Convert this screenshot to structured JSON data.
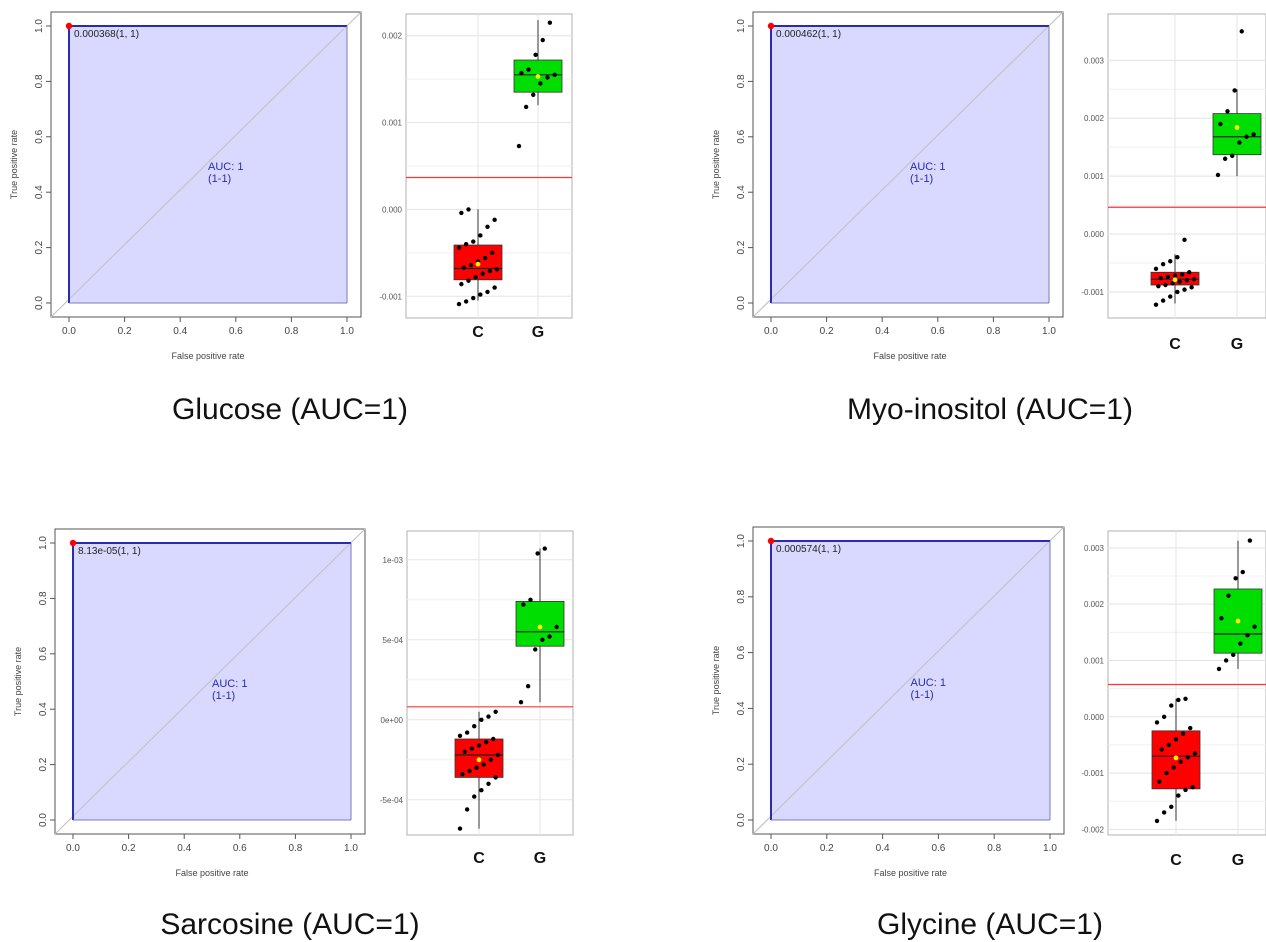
{
  "chart_data": [
    {
      "type": "roc_with_boxplot",
      "caption": "Glucose (AUC=1)",
      "roc": {
        "type": "line",
        "xlabel": "False positive rate",
        "ylabel": "True positive rate",
        "xlim": [
          0,
          1
        ],
        "ylim": [
          0,
          1
        ],
        "xticks": [
          "0.0",
          "0.2",
          "0.4",
          "0.6",
          "0.8",
          "1.0"
        ],
        "yticks": [
          "0.0",
          "0.2",
          "0.4",
          "0.6",
          "0.8",
          "1.0"
        ],
        "curve": [
          [
            0,
            0
          ],
          [
            0,
            1
          ],
          [
            1,
            1
          ]
        ],
        "auc_text": "AUC: 1",
        "ci_text": "(1-1)",
        "threshold_label": "0.000368(1, 1)",
        "threshold_point": [
          0,
          1
        ]
      },
      "boxplot": {
        "type": "box",
        "categories": [
          "C",
          "G"
        ],
        "ylim": [
          -0.00125,
          0.00225
        ],
        "yticks": [
          {
            "v": -0.001,
            "label": "-0.001"
          },
          {
            "v": 0,
            "label": "0.000"
          },
          {
            "v": 0.001,
            "label": "0.001"
          },
          {
            "v": 0.002,
            "label": "0.002"
          }
        ],
        "cutoff": 0.000368,
        "boxes": [
          {
            "name": "C",
            "color": "#ff0000",
            "min": -0.00105,
            "q1": -0.00081,
            "median": -0.00068,
            "q3": -0.00041,
            "max": 0.0,
            "mean": -0.00063,
            "points": [
              -0.00109,
              -0.00106,
              -0.00102,
              -0.00098,
              -0.00095,
              -0.0009,
              -0.00086,
              -0.00082,
              -0.00078,
              -0.00074,
              -0.00071,
              -0.00069,
              -0.00067,
              -0.00064,
              -0.0006,
              -0.00056,
              -0.0005,
              -0.00044,
              -0.0004,
              -0.00037,
              -0.0003,
              -0.0002,
              -0.00012,
              -4e-05,
              0.0
            ]
          },
          {
            "name": "G",
            "color": "#00dd00",
            "min": 0.0012,
            "q1": 0.00135,
            "median": 0.00155,
            "q3": 0.00172,
            "max": 0.00218,
            "mean": 0.00153,
            "points": [
              0.00073,
              0.00118,
              0.00132,
              0.00145,
              0.00152,
              0.00155,
              0.00157,
              0.00161,
              0.00178,
              0.00195,
              0.00215
            ]
          }
        ]
      }
    },
    {
      "type": "roc_with_boxplot",
      "caption": "Myo-inositol (AUC=1)",
      "roc": {
        "type": "line",
        "xlabel": "False positive rate",
        "ylabel": "True positive rate",
        "xlim": [
          0,
          1
        ],
        "ylim": [
          0,
          1
        ],
        "xticks": [
          "0.0",
          "0.2",
          "0.4",
          "0.6",
          "0.8",
          "1.0"
        ],
        "yticks": [
          "0.0",
          "0.2",
          "0.4",
          "0.6",
          "0.8",
          "1.0"
        ],
        "curve": [
          [
            0,
            0
          ],
          [
            0,
            1
          ],
          [
            1,
            1
          ]
        ],
        "auc_text": "AUC: 1",
        "ci_text": "(1-1)",
        "threshold_label": "0.000462(1, 1)",
        "threshold_point": [
          0,
          1
        ]
      },
      "boxplot": {
        "type": "box",
        "categories": [
          "C",
          "G"
        ],
        "ylim": [
          -0.00145,
          0.0038
        ],
        "yticks": [
          {
            "v": -0.001,
            "label": "-0.001"
          },
          {
            "v": 0,
            "label": "0.000"
          },
          {
            "v": 0.001,
            "label": "0.001"
          },
          {
            "v": 0.002,
            "label": "0.002"
          },
          {
            "v": 0.003,
            "label": "0.003"
          }
        ],
        "cutoff": 0.000462,
        "boxes": [
          {
            "name": "C",
            "color": "#ff0000",
            "min": -0.0012,
            "q1": -0.00088,
            "median": -0.00078,
            "q3": -0.00066,
            "max": -0.00035,
            "mean": -0.00079,
            "points": [
              -0.00122,
              -0.00115,
              -0.00108,
              -0.001,
              -0.00096,
              -0.00092,
              -0.0009,
              -0.00088,
              -0.00085,
              -0.00082,
              -0.0008,
              -0.00078,
              -0.00076,
              -0.00074,
              -0.00072,
              -0.0007,
              -0.00066,
              -0.0006,
              -0.00052,
              -0.00047,
              -0.0004,
              -0.0001
            ]
          },
          {
            "name": "G",
            "color": "#00dd00",
            "min": 0.001,
            "q1": 0.00137,
            "median": 0.00168,
            "q3": 0.00208,
            "max": 0.0025,
            "mean": 0.00184,
            "points": [
              0.00102,
              0.0013,
              0.00135,
              0.00158,
              0.00168,
              0.00172,
              0.0019,
              0.00212,
              0.00248,
              0.0035
            ]
          }
        ]
      }
    },
    {
      "type": "roc_with_boxplot",
      "caption": "Sarcosine (AUC=1)",
      "roc": {
        "type": "line",
        "xlabel": "False positive rate",
        "ylabel": "True positive rate",
        "xlim": [
          0,
          1
        ],
        "ylim": [
          0,
          1
        ],
        "xticks": [
          "0.0",
          "0.2",
          "0.4",
          "0.6",
          "0.8",
          "1.0"
        ],
        "yticks": [
          "0.0",
          "0.2",
          "0.4",
          "0.6",
          "0.8",
          "1.0"
        ],
        "curve": [
          [
            0,
            0
          ],
          [
            0,
            1
          ],
          [
            1,
            1
          ]
        ],
        "auc_text": "AUC: 1",
        "ci_text": "(1-1)",
        "threshold_label": "8.13e-05(1, 1)",
        "threshold_point": [
          0,
          1
        ]
      },
      "boxplot": {
        "type": "box",
        "categories": [
          "C",
          "G"
        ],
        "ylim": [
          -0.00072,
          0.00118
        ],
        "yticks": [
          {
            "v": -0.0005,
            "label": "-5e-04"
          },
          {
            "v": 0,
            "label": "0e+00"
          },
          {
            "v": 0.0005,
            "label": "5e-04"
          },
          {
            "v": 0.001,
            "label": "1e-03"
          }
        ],
        "cutoff": 8.13e-05,
        "boxes": [
          {
            "name": "C",
            "color": "#ff0000",
            "min": -0.00068,
            "q1": -0.00036,
            "median": -0.00022,
            "q3": -0.00012,
            "max": 5e-05,
            "mean": -0.00025,
            "points": [
              -0.00068,
              -0.00056,
              -0.00048,
              -0.00044,
              -0.0004,
              -0.00036,
              -0.00034,
              -0.00032,
              -0.0003,
              -0.00028,
              -0.00025,
              -0.00022,
              -0.0002,
              -0.00018,
              -0.00016,
              -0.00014,
              -0.00012,
              -0.0001,
              -8e-05,
              -4e-05,
              0.0,
              2e-05,
              5e-05
            ]
          },
          {
            "name": "G",
            "color": "#00dd00",
            "min": 0.00011,
            "q1": 0.00046,
            "median": 0.00055,
            "q3": 0.00074,
            "max": 0.00107,
            "mean": 0.00058,
            "points": [
              0.00011,
              0.00021,
              0.00044,
              0.0005,
              0.00052,
              0.00058,
              0.00072,
              0.00075,
              0.00104,
              0.00107
            ]
          }
        ]
      }
    },
    {
      "type": "roc_with_boxplot",
      "caption": "Glycine (AUC=1)",
      "roc": {
        "type": "line",
        "xlabel": "False positive rate",
        "ylabel": "True positive rate",
        "xlim": [
          0,
          1
        ],
        "ylim": [
          0,
          1
        ],
        "xticks": [
          "0.0",
          "0.2",
          "0.4",
          "0.6",
          "0.8",
          "1.0"
        ],
        "yticks": [
          "0.0",
          "0.2",
          "0.4",
          "0.6",
          "0.8",
          "1.0"
        ],
        "curve": [
          [
            0,
            0
          ],
          [
            0,
            1
          ],
          [
            1,
            1
          ]
        ],
        "auc_text": "AUC: 1",
        "ci_text": "(1-1)",
        "threshold_label": "0.000574(1, 1)",
        "threshold_point": [
          0,
          1
        ]
      },
      "boxplot": {
        "type": "box",
        "categories": [
          "C",
          "G"
        ],
        "ylim": [
          -0.0021,
          0.0033
        ],
        "yticks": [
          {
            "v": -0.002,
            "label": "-0.002"
          },
          {
            "v": -0.001,
            "label": "-0.001"
          },
          {
            "v": 0,
            "label": "0.000"
          },
          {
            "v": 0.001,
            "label": "0.001"
          },
          {
            "v": 0.002,
            "label": "0.002"
          },
          {
            "v": 0.003,
            "label": "0.003"
          }
        ],
        "cutoff": 0.000574,
        "boxes": [
          {
            "name": "C",
            "color": "#ff0000",
            "min": -0.00185,
            "q1": -0.00128,
            "median": -0.0007,
            "q3": -0.00025,
            "max": 0.00032,
            "mean": -0.00073,
            "points": [
              -0.00185,
              -0.0017,
              -0.0016,
              -0.0014,
              -0.0013,
              -0.00125,
              -0.00115,
              -0.001,
              -0.0009,
              -0.0008,
              -0.00072,
              -0.00065,
              -0.00058,
              -0.0005,
              -0.0004,
              -0.0003,
              -0.0002,
              -0.0001,
              0.0,
              0.0002,
              0.0003,
              0.00032
            ]
          },
          {
            "name": "G",
            "color": "#00dd00",
            "min": 0.00085,
            "q1": 0.00113,
            "median": 0.00147,
            "q3": 0.00227,
            "max": 0.00313,
            "mean": 0.0017,
            "points": [
              0.00085,
              0.001,
              0.0011,
              0.0013,
              0.00145,
              0.0016,
              0.00175,
              0.00215,
              0.00246,
              0.00257,
              0.00313
            ]
          }
        ]
      }
    }
  ]
}
